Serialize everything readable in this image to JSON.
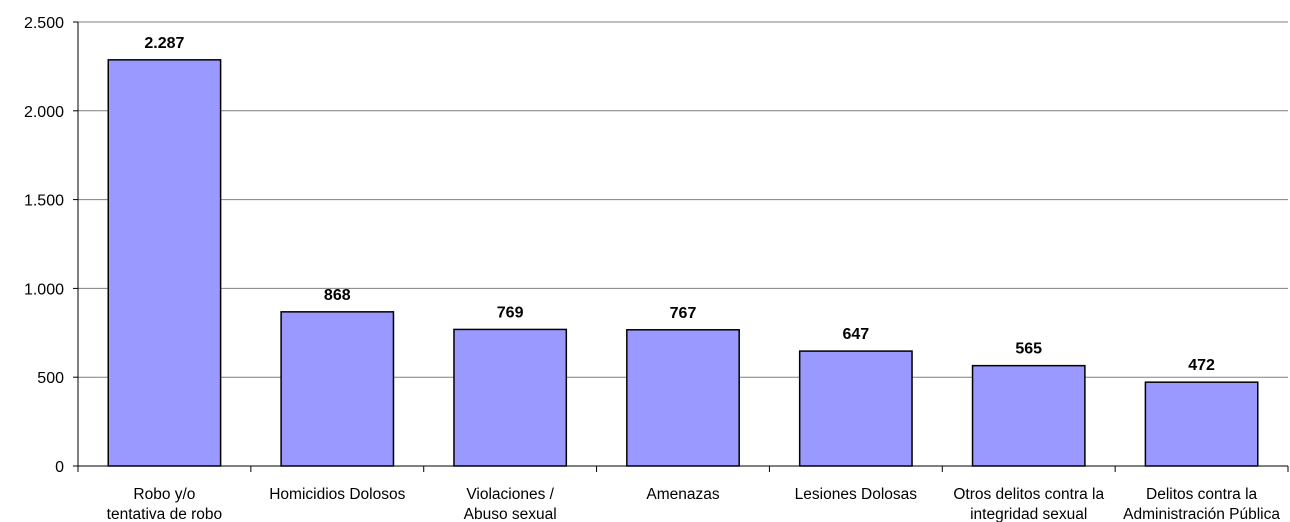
{
  "chart_data": {
    "type": "bar",
    "categories": [
      [
        "Robo y/o",
        "tentativa de robo"
      ],
      [
        "Homicidios Dolosos"
      ],
      [
        "Violaciones /",
        "Abuso sexual"
      ],
      [
        "Amenazas"
      ],
      [
        "Lesiones Dolosas"
      ],
      [
        "Otros delitos contra la",
        "integridad sexual"
      ],
      [
        "Delitos contra la",
        "Administración Pública"
      ]
    ],
    "values": [
      2287,
      868,
      769,
      767,
      647,
      565,
      472
    ],
    "value_labels": [
      "2.287",
      "868",
      "769",
      "767",
      "647",
      "565",
      "472"
    ],
    "ylim": [
      0,
      2500
    ],
    "yticks": [
      0,
      500,
      1000,
      1500,
      2000,
      2500
    ],
    "ytick_labels": [
      "0",
      "500",
      "1.000",
      "1.500",
      "2.000",
      "2.500"
    ],
    "grid": true,
    "legend": "none",
    "bar_color": "#9999ff",
    "bar_edge_color": "#000000",
    "grid_color": "#808080"
  }
}
